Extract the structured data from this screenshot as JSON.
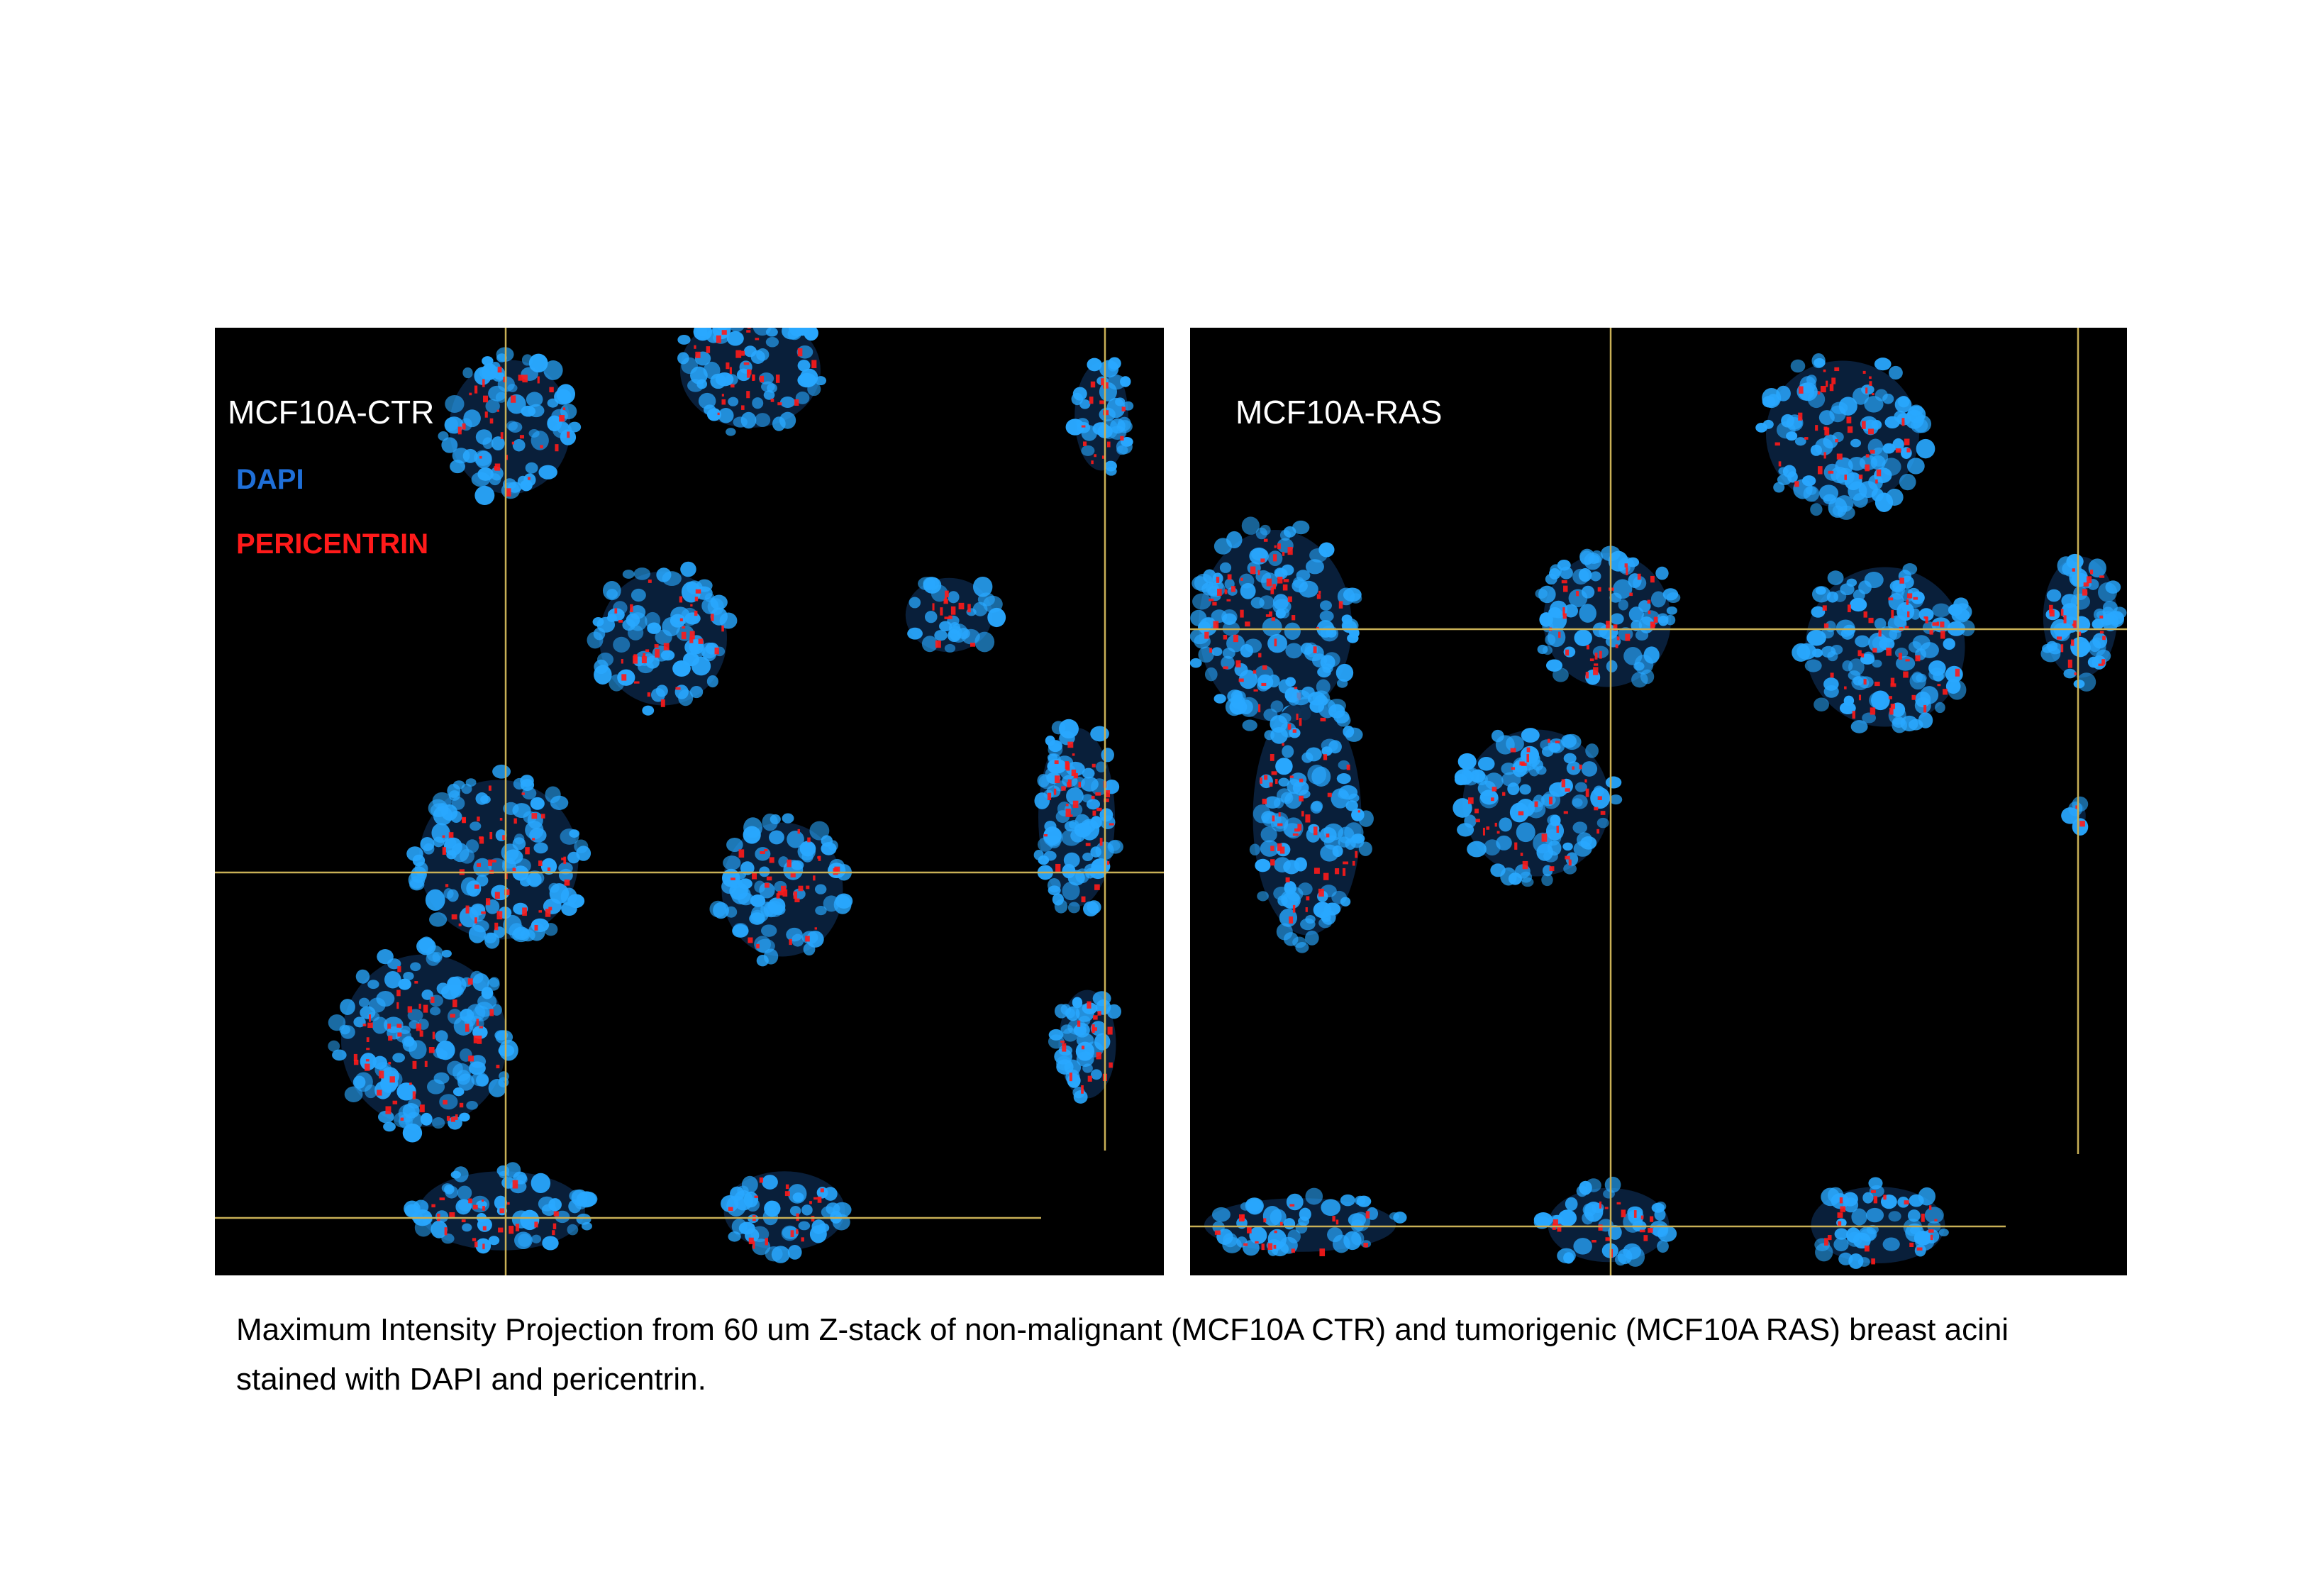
{
  "panels": {
    "left": {
      "label": "MCF10A-CTR"
    },
    "right": {
      "label": "MCF10A-RAS"
    }
  },
  "legend": {
    "dapi": {
      "text": "DAPI",
      "color": "#1f6fd8"
    },
    "pericentrin": {
      "text": "PERICENTRIN",
      "color": "#ff1a1a"
    }
  },
  "colors": {
    "nucleus": "#29a8ff",
    "centrosome": "#ff1a1a",
    "crosshair": "#c9b056",
    "background": "#000000"
  },
  "caption": "Maximum Intensity Projection from 60 um Z-stack of non-malignant (MCF10A CTR) and tumorigenic (MCF10A RAS) breast acini stained with DAPI and pericentrin."
}
